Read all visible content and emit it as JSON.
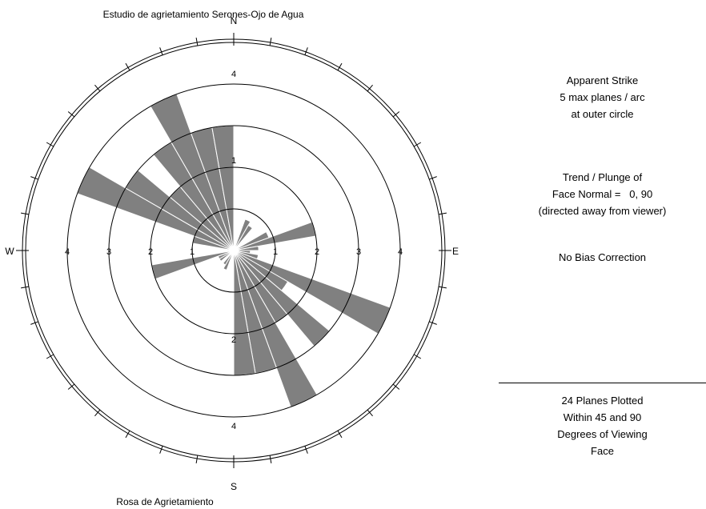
{
  "chart_data": {
    "type": "rose",
    "title": "Estudio de agrietamiento Serones-Ojo de Agua",
    "subtitle": "Rosa de Agrietamiento",
    "cardinals": {
      "north": "N",
      "south": "S",
      "east": "E",
      "west": "W"
    },
    "radial_max": 5,
    "ring_values": [
      1,
      2,
      3,
      4,
      5
    ],
    "ring_labels_ew": [
      "1",
      "2",
      "3",
      "4"
    ],
    "ring_labels_ns": [
      "1",
      "2",
      "3",
      "4"
    ],
    "bin_width_deg": 10,
    "bins": [
      {
        "azimuth_start": 0,
        "azimuth_end": 10,
        "count": 0
      },
      {
        "azimuth_start": 10,
        "azimuth_end": 20,
        "count": 0
      },
      {
        "azimuth_start": 20,
        "azimuth_end": 30,
        "count": 0.8
      },
      {
        "azimuth_start": 30,
        "azimuth_end": 40,
        "count": 0.7
      },
      {
        "azimuth_start": 40,
        "azimuth_end": 50,
        "count": 0
      },
      {
        "azimuth_start": 50,
        "azimuth_end": 60,
        "count": 0
      },
      {
        "azimuth_start": 60,
        "azimuth_end": 70,
        "count": 0.9
      },
      {
        "azimuth_start": 70,
        "azimuth_end": 80,
        "count": 2.0
      },
      {
        "azimuth_start": 80,
        "azimuth_end": 90,
        "count": 0.6
      },
      {
        "azimuth_start": 90,
        "azimuth_end": 100,
        "count": 0.4
      },
      {
        "azimuth_start": 100,
        "azimuth_end": 110,
        "count": 0.6
      },
      {
        "azimuth_start": 110,
        "azimuth_end": 120,
        "count": 4.0
      },
      {
        "azimuth_start": 120,
        "azimuth_end": 130,
        "count": 1.5
      },
      {
        "azimuth_start": 130,
        "azimuth_end": 140,
        "count": 3.0
      },
      {
        "azimuth_start": 140,
        "azimuth_end": 150,
        "count": 2.0
      },
      {
        "azimuth_start": 150,
        "azimuth_end": 160,
        "count": 4.0
      },
      {
        "azimuth_start": 160,
        "azimuth_end": 170,
        "count": 3.0
      },
      {
        "azimuth_start": 170,
        "azimuth_end": 180,
        "count": 3.0
      },
      {
        "azimuth_start": 180,
        "azimuth_end": 190,
        "count": 0
      },
      {
        "azimuth_start": 190,
        "azimuth_end": 200,
        "count": 0
      },
      {
        "azimuth_start": 200,
        "azimuth_end": 210,
        "count": 0.5
      },
      {
        "azimuth_start": 210,
        "azimuth_end": 220,
        "count": 0.4
      },
      {
        "azimuth_start": 220,
        "azimuth_end": 230,
        "count": 0
      },
      {
        "azimuth_start": 230,
        "azimuth_end": 240,
        "count": 0.4
      },
      {
        "azimuth_start": 240,
        "azimuth_end": 250,
        "count": 0.4
      },
      {
        "azimuth_start": 250,
        "azimuth_end": 260,
        "count": 2.0
      },
      {
        "azimuth_start": 260,
        "azimuth_end": 270,
        "count": 0
      },
      {
        "azimuth_start": 270,
        "azimuth_end": 280,
        "count": 0
      },
      {
        "azimuth_start": 280,
        "azimuth_end": 290,
        "count": 1.0
      },
      {
        "azimuth_start": 290,
        "azimuth_end": 300,
        "count": 4.0
      },
      {
        "azimuth_start": 300,
        "azimuth_end": 310,
        "count": 3.0
      },
      {
        "azimuth_start": 310,
        "azimuth_end": 320,
        "count": 2.0
      },
      {
        "azimuth_start": 320,
        "azimuth_end": 330,
        "count": 3.0
      },
      {
        "azimuth_start": 330,
        "azimuth_end": 340,
        "count": 4.0
      },
      {
        "azimuth_start": 340,
        "azimuth_end": 350,
        "count": 3.0
      },
      {
        "azimuth_start": 350,
        "azimuth_end": 360,
        "count": 3.0
      }
    ],
    "colors": {
      "wedge": "#808080",
      "wedge_edge": "#ffffff",
      "lines": "#000000"
    },
    "grid": true
  },
  "info": {
    "block1": [
      "Apparent Strike",
      "5 max planes / arc",
      "at outer circle"
    ],
    "block2": [
      "Trend / Plunge of",
      "Face Normal =   0, 90",
      "(directed away from viewer)"
    ],
    "block3": [
      "No Bias Correction"
    ],
    "block4": [
      "24 Planes Plotted",
      "Within 45 and 90",
      "Degrees of Viewing",
      "Face"
    ]
  }
}
